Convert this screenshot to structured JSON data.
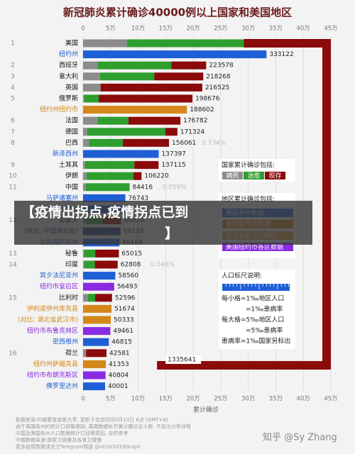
{
  "chart_data": {
    "type": "bar",
    "title": "新冠肺炎累计确诊40000例以上国家和美国地区",
    "x_label": "累计确诊",
    "xlim": [
      0,
      450000
    ],
    "xticks": [
      {
        "value": 0,
        "label": "0"
      },
      {
        "value": 50000,
        "label": "5万"
      },
      {
        "value": 100000,
        "label": "10万"
      },
      {
        "value": 150000,
        "label": "15万"
      },
      {
        "value": 200000,
        "label": "20万"
      },
      {
        "value": 250000,
        "label": "25万"
      },
      {
        "value": 300000,
        "label": "30万"
      },
      {
        "value": 350000,
        "label": "35万"
      },
      {
        "value": 400000,
        "label": "40万"
      },
      {
        "value": 450000,
        "label": "45万"
      }
    ],
    "grid": true,
    "segment_colors": {
      "deaths": "#8c8c8c",
      "recovered": "#2e9e2e",
      "active": "#8b0a0a"
    },
    "rows": [
      {
        "rank": 1,
        "name": "美国",
        "deaths": 79526,
        "recovered": 212534,
        "active": 1043581,
        "total": 1335641
      },
      {
        "name": "纽约州",
        "total": 333122,
        "color": "#1f5fd6"
      },
      {
        "rank": 2,
        "name": "西班牙",
        "deaths": 26478,
        "recovered": 133952,
        "active": 63148,
        "total": 223578
      },
      {
        "rank": 3,
        "name": "意大利",
        "deaths": 30560,
        "recovered": 99023,
        "active": 88685,
        "total": 218268
      },
      {
        "rank": 4,
        "name": "英国",
        "deaths": 31855,
        "recovered": null,
        "recovered_label": "?",
        "active": 184670,
        "total": 216525
      },
      {
        "rank": 5,
        "name": "俄罗斯",
        "deaths": 1827,
        "recovered": 26608,
        "active": 170241,
        "total": 198676
      },
      {
        "name": "纽约州纽约市",
        "total": 188602,
        "color": "#d4881a"
      },
      {
        "rank": 6,
        "name": "法国",
        "deaths": 26380,
        "recovered": 56038,
        "active": 94364,
        "total": 176782
      },
      {
        "rank": 7,
        "name": "德国",
        "deaths": 7549,
        "recovered": 141700,
        "active": 22075,
        "total": 171324
      },
      {
        "rank": 8,
        "name": "巴西",
        "deaths": 10627,
        "recovered": 61685,
        "active": 83749,
        "total": 156061,
        "rate_label": "0.734%"
      },
      {
        "name": "新泽西州",
        "total": 137397,
        "color": "#1f5fd6"
      },
      {
        "rank": 9,
        "name": "土耳其",
        "deaths": 3739,
        "recovered": 89480,
        "active": 43896,
        "total": 137115
      },
      {
        "rank": 10,
        "name": "伊朗",
        "deaths": 6589,
        "recovered": 85064,
        "active": 14567,
        "total": 106220
      },
      {
        "rank": 11,
        "name": "中国",
        "deaths": 4637,
        "recovered": 79310,
        "active": 469,
        "total": 84416,
        "rate_label": "0.059%"
      },
      {
        "name": "马萨诸塞州",
        "total": 76743,
        "color": "#1f5fd6"
      },
      {
        "name": "伊利诺伊州",
        "total": 76085,
        "color": "#1f5fd6"
      },
      {
        "rank": 12,
        "name": "加拿大",
        "deaths": 4871,
        "recovered": 31209,
        "active": 32838,
        "total": 68918
      },
      {
        "name": "(对比: 中国湖北省)",
        "total": 68128,
        "color": "#1a3a80"
      },
      {
        "name": "加利福尼亚州",
        "total": 66164,
        "color": "#1f5fd6"
      },
      {
        "rank": 13,
        "name": "秘鲁",
        "deaths": 1814,
        "recovered": 20246,
        "active": 42955,
        "total": 65015
      },
      {
        "rank": 14,
        "name": "印度",
        "deaths": 2101,
        "recovered": 19301,
        "active": 41406,
        "total": 62808,
        "rate_label": "0.046%"
      },
      {
        "name": "宾夕法尼亚州",
        "total": 58560,
        "color": "#1f5fd6"
      },
      {
        "name": "纽约市皇后区",
        "total": 56493,
        "color": "#8a2be2"
      },
      {
        "rank": 15,
        "name": "比利时",
        "deaths": 8581,
        "recovered": 13411,
        "active": 30604,
        "total": 52596
      },
      {
        "name": "伊利诺伊州库克县",
        "total": 51674,
        "color": "#d4881a"
      },
      {
        "name": "(对比: 湖北省武汉市)",
        "total": 50333,
        "color": "#d4881a"
      },
      {
        "name": "纽约市布鲁克林区",
        "total": 49461,
        "color": "#8a2be2"
      },
      {
        "name": "密西根州",
        "total": 46815,
        "color": "#1f5fd6"
      },
      {
        "rank": 16,
        "name": "荷兰",
        "deaths": 5440,
        "recovered": null,
        "recovered_label": "?",
        "active": 37141,
        "total": 42581
      },
      {
        "name": "纽约州萨福克县",
        "total": 41353,
        "color": "#d4881a"
      },
      {
        "name": "纽约市布朗克斯区",
        "total": 40804,
        "color": "#8a2be2"
      },
      {
        "name": "佛罗里达州",
        "total": 40001,
        "color": "#1f5fd6"
      }
    ],
    "country_legend": {
      "title": "国家累计确诊包括:",
      "items": [
        "病死",
        "治愈",
        "现存"
      ]
    },
    "region_legend": {
      "title": "地区累计确诊包括:",
      "items": [
        {
          "label": "美国各州数据",
          "color": "#1f5fd6"
        },
        {
          "label": "美国各市县数据",
          "color": "#d4881a"
        },
        {
          "label": "湖北省武汉市数据",
          "color": "#e0a040"
        },
        {
          "label": "美国纽约市各区数据",
          "color": "#8a2be2"
        }
      ]
    },
    "scale_legend": {
      "title": "人口标尺说明:",
      "lines": [
        "每小格=1‰地区人口",
        "=1‰患病率",
        "每大格=5‰地区人口",
        "=5‰患病率",
        "患病率=1‰国家另标出"
      ]
    },
    "footer": [
      "数据来源:约翰霍普金斯大学, 更新于北京时间5月10日 8点 (GMT+8)",
      "由于美国各州的统计口径等原因, 美国数据补齐累计确诊总人数, 不显示分布详情",
      "中国及美国各州人口数据统计口径等原因, 仅供参考",
      "中国数据来源:国家卫健委及各省卫健委",
      "更多疫情数据请关注Telegram频道 @nCoV2019Graph"
    ],
    "watermark": "知乎 @Sy Zhang",
    "overlay": [
      "【疫情出拐点,疫情拐点已到",
      "】"
    ]
  }
}
